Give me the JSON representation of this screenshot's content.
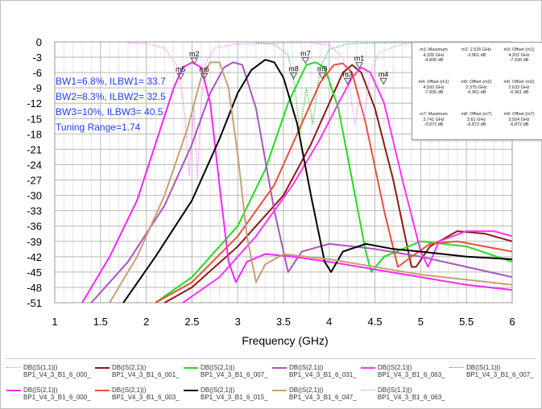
{
  "chart_data": {
    "type": "line",
    "title": "",
    "xlabel": "Frequency (GHz)",
    "ylabel": "",
    "xlim": [
      1,
      6
    ],
    "ylim": [
      -51,
      0
    ],
    "x_ticks": [
      "1",
      "1.5",
      "2",
      "2.5",
      "3",
      "3.5",
      "4",
      "4.5",
      "5",
      "5.5",
      "6"
    ],
    "y_ticks": [
      "0",
      "-3",
      "-6",
      "-9",
      "-12",
      "-15",
      "-18",
      "-21",
      "-24",
      "-27",
      "-30",
      "-33",
      "-36",
      "-39",
      "-42",
      "-45",
      "-48",
      "-51"
    ],
    "grid": true,
    "annotations": [
      "BW1=6.8%, ILBW1= 33.7",
      "BW2=8.3%, ILBW2= 32.5",
      "BW3=10%, ILBW3= 40.5",
      "Tuning Range=1.74"
    ],
    "series": [
      {
        "label_line1": "DB(|S(1,1)|)",
        "label_line2": "BP1_V4_3_B1_6_000_",
        "color": "#ff66ff",
        "style": "dotted",
        "x": [
          1.8,
          2.0,
          2.2,
          2.35,
          2.42,
          2.47,
          2.52,
          2.56,
          2.6,
          2.65,
          2.75,
          3.0,
          3.5,
          4.0
        ],
        "y": [
          -0.2,
          -0.3,
          -1.2,
          -5,
          -14,
          -26,
          -13,
          -27,
          -12,
          -4,
          -1.2,
          -0.4,
          -0.2,
          -0.1
        ]
      },
      {
        "label_line1": "DB(|S(2,1)|)",
        "label_line2": "BP1_V4_3_B1_6_001_",
        "color": "#8b1a1a",
        "style": "solid",
        "x": [
          2.2,
          2.5,
          3.0,
          3.5,
          3.8,
          4.0,
          4.15,
          4.25,
          4.35,
          4.5,
          4.7,
          4.9,
          4.95,
          5.1,
          5.4,
          5.7,
          6.0
        ],
        "y": [
          -51,
          -48,
          -40,
          -30,
          -20,
          -12,
          -6,
          -4.5,
          -6,
          -13,
          -27,
          -44,
          -44,
          -40,
          -37,
          -37.5,
          -39
        ]
      },
      {
        "label_line1": "DB(|S(2,1)|)",
        "label_line2": "BP1_V4_3_B1_6_007_",
        "color": "#22dd22",
        "style": "solid",
        "x": [
          2.1,
          2.5,
          3.0,
          3.3,
          3.55,
          3.75,
          3.85,
          3.95,
          4.1,
          4.25,
          4.4,
          4.46,
          4.6,
          5.0,
          5.5,
          6.0
        ],
        "y": [
          -51,
          -46,
          -36,
          -25,
          -12,
          -4.5,
          -4,
          -5,
          -13,
          -27,
          -41,
          -45,
          -42,
          -39,
          -40,
          -43
        ]
      },
      {
        "label_line1": "DB(|S(2,1)|)",
        "label_line2": "BP1_V4_3_B1_6_031_",
        "color": "#aa55bb",
        "style": "solid",
        "x": [
          1.4,
          1.8,
          2.2,
          2.5,
          2.7,
          2.85,
          2.95,
          3.05,
          3.2,
          3.4,
          3.55,
          3.7,
          4.0,
          4.5,
          5.0,
          5.5,
          6.0
        ],
        "y": [
          -51,
          -43,
          -32,
          -20,
          -10,
          -5,
          -4,
          -4.5,
          -13,
          -33,
          -45,
          -41,
          -39.5,
          -40.5,
          -42,
          -44,
          -46
        ]
      },
      {
        "label_line1": "DB(|S(2,1)|)",
        "label_line2": "BP1_V4_3_B1_6_063_",
        "color": "#ff33ff",
        "style": "solid",
        "x": [
          2.4,
          2.8,
          3.2,
          3.6,
          3.9,
          4.1,
          4.25,
          4.35,
          4.45,
          4.6,
          4.8,
          5.0,
          5.08,
          5.2,
          5.5,
          5.8,
          6.0
        ],
        "y": [
          -51,
          -46,
          -38,
          -28,
          -19,
          -12,
          -7,
          -5,
          -6,
          -12,
          -27,
          -41,
          -44,
          -39,
          -37,
          -37,
          -38
        ]
      },
      {
        "label_line1": "DB(|S(1,1)|)",
        "label_line2": "BP1_V4_3_B1_6_007_",
        "color": "#22bb22",
        "style": "dotted",
        "x": [
          3.2,
          3.4,
          3.55,
          3.62,
          3.68,
          3.75,
          3.82,
          3.9,
          4.0,
          4.2,
          4.5,
          5.0
        ],
        "y": [
          -0.2,
          -0.5,
          -2.5,
          -8,
          -18,
          -9,
          -16,
          -5,
          -1.5,
          -0.4,
          -0.2,
          -0.1
        ]
      },
      {
        "label_line1": "DB(|S(2,1)|)",
        "label_line2": "BP1_V4_3_B1_6_000_",
        "color": "#ff22ff",
        "style": "solid",
        "x": [
          1.3,
          1.6,
          1.9,
          2.1,
          2.3,
          2.4,
          2.5,
          2.6,
          2.7,
          2.8,
          2.9,
          2.98,
          3.1,
          3.3,
          3.6,
          4.0,
          4.5,
          5.0,
          5.5,
          6.0
        ],
        "y": [
          -51,
          -42,
          -31,
          -20,
          -9,
          -5,
          -4,
          -5,
          -12,
          -28,
          -43,
          -47,
          -43,
          -41.5,
          -42,
          -43,
          -44.5,
          -46,
          -47.5,
          -48.5
        ]
      },
      {
        "label_line1": "DB(|S(2,1)|)",
        "label_line2": "BP1_V4_3_B1_6_003_",
        "color": "#e8503a",
        "style": "solid",
        "x": [
          2.1,
          2.5,
          3.0,
          3.4,
          3.7,
          3.9,
          4.05,
          4.15,
          4.25,
          4.4,
          4.6,
          4.75,
          4.9,
          5.1,
          5.4,
          5.7,
          6.0
        ],
        "y": [
          -51,
          -47,
          -38,
          -28,
          -16,
          -8,
          -4.5,
          -4.2,
          -6,
          -16,
          -33,
          -44,
          -42,
          -39.5,
          -39,
          -40,
          -41
        ]
      },
      {
        "label_line1": "DB(|S(2,1)|)",
        "label_line2": "BP1_V4_3_B1_6_015_",
        "color": "#000000",
        "style": "solid",
        "x": [
          1.75,
          2.1,
          2.5,
          2.8,
          3.0,
          3.15,
          3.3,
          3.4,
          3.5,
          3.65,
          3.8,
          3.95,
          4.02,
          4.15,
          4.4,
          4.7,
          5.0,
          5.5,
          6.0
        ],
        "y": [
          -51,
          -42,
          -31,
          -19,
          -10,
          -5.5,
          -3.5,
          -4,
          -7,
          -16,
          -30,
          -43,
          -45,
          -41,
          -39.5,
          -40.5,
          -41,
          -42,
          -42.5
        ]
      },
      {
        "label_line1": "DB(|S(2,1)|)",
        "label_line2": "BP1_V4_3_B1_6_047_",
        "color": "#c8a070",
        "style": "solid",
        "x": [
          1.6,
          1.9,
          2.2,
          2.45,
          2.6,
          2.7,
          2.8,
          2.9,
          3.0,
          3.1,
          3.2,
          3.3,
          3.5,
          4.0,
          4.5,
          5.0,
          5.5,
          6.0
        ],
        "y": [
          -51,
          -42,
          -30,
          -17,
          -7,
          -4,
          -4,
          -9,
          -22,
          -38,
          -47,
          -43.5,
          -41.5,
          -42.5,
          -44,
          -45.5,
          -46.5,
          -47.5
        ]
      },
      {
        "label_line1": "DB(|S(1,1)|)",
        "label_line2": "BP1_V4_3_B1_6_063_",
        "color": "#ff77ff",
        "style": "dotted",
        "x": [
          3.8,
          4.0,
          4.15,
          4.22,
          4.28,
          4.33,
          4.38,
          4.45,
          4.55,
          4.8,
          5.2
        ],
        "y": [
          -0.2,
          -0.6,
          -3,
          -9,
          -16,
          -11,
          -15,
          -6,
          -2,
          -0.4,
          -0.1
        ]
      }
    ],
    "markers": [
      {
        "name": "m1",
        "x": 4.328,
        "y": -4.836
      },
      {
        "name": "m2",
        "x": 2.525,
        "y": -3.961
      },
      {
        "name": "m3",
        "x": 4.201,
        "y": -7.936
      },
      {
        "name": "m4",
        "x": 4.593,
        "y": -7.936
      },
      {
        "name": "m5",
        "x": 2.375,
        "y": -6.961
      },
      {
        "name": "m6",
        "x": 2.633,
        "y": -6.961
      },
      {
        "name": "m7",
        "x": 3.741,
        "y": -3.872
      },
      {
        "name": "m8",
        "x": 3.61,
        "y": -6.872
      },
      {
        "name": "m9",
        "x": 3.924,
        "y": -6.872
      }
    ]
  },
  "marker_table": [
    [
      {
        "l1": "m1: Maximum",
        "l2": "4.328 GHz",
        "l3": "-4.836 dB"
      },
      {
        "l1": "m2: 2.525 GHz",
        "l2": "-3.961 dB",
        "l3": ""
      },
      {
        "l1": "m3: Offset (m1)",
        "l2": "4.201 GHz",
        "l3": "-7.936 dB"
      }
    ],
    [
      {
        "l1": "m4: Offset (m1)",
        "l2": "4.593 GHz",
        "l3": "-7.936 dB"
      },
      {
        "l1": "m5: Offset (m2)",
        "l2": "2.375 GHz",
        "l3": "-6.961 dB"
      },
      {
        "l1": "m6: Offset (m2)",
        "l2": "2.633 GHz",
        "l3": "-6.961 dB"
      }
    ],
    [
      {
        "l1": "m7: Maximum",
        "l2": "3.741 GHz",
        "l3": "-3.872 dB"
      },
      {
        "l1": "m8: Offset (m7)",
        "l2": "3.61 GHz",
        "l3": "-6.872 dB"
      },
      {
        "l1": "m9: Offset (m7)",
        "l2": "3.924 GHz",
        "l3": "-6.872 dB"
      }
    ]
  ]
}
